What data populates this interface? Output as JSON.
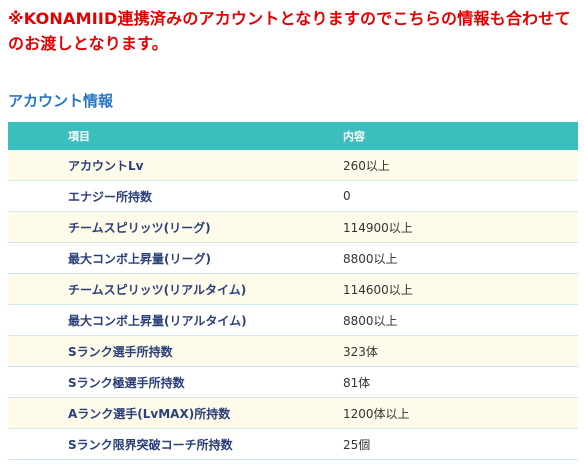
{
  "notice": "※KONAMIID連携済みのアカウントとなりますのでこちらの情報も合わせてのお渡しとなります。",
  "section_title": "アカウント情報",
  "table": {
    "headers": {
      "item": "項目",
      "value": "内容"
    },
    "rows": [
      {
        "item": "アカウントLv",
        "value": "260以上"
      },
      {
        "item": "エナジー所持数",
        "value": "0"
      },
      {
        "item": "チームスピリッツ(リーグ)",
        "value": "114900以上"
      },
      {
        "item": "最大コンボ上昇量(リーグ)",
        "value": "8800以上"
      },
      {
        "item": "チームスピリッツ(リアルタイム)",
        "value": "114600以上"
      },
      {
        "item": "最大コンボ上昇量(リアルタイム)",
        "value": "8800以上"
      },
      {
        "item": "Sランク選手所持数",
        "value": "323体"
      },
      {
        "item": "Sランク極選手所持数",
        "value": "81体"
      },
      {
        "item": "Aランク選手(LvMAX)所持数",
        "value": "1200体以上"
      },
      {
        "item": "Sランク限界突破コーチ所持数",
        "value": "25個"
      }
    ]
  },
  "colors": {
    "notice": "#e50000",
    "section_title": "#2776c1",
    "header_bg": "#3abfbe",
    "header_text": "#ffffff",
    "row_odd_bg": "#fffbea",
    "row_even_bg": "#ffffff",
    "item_text": "#2b3f78"
  }
}
